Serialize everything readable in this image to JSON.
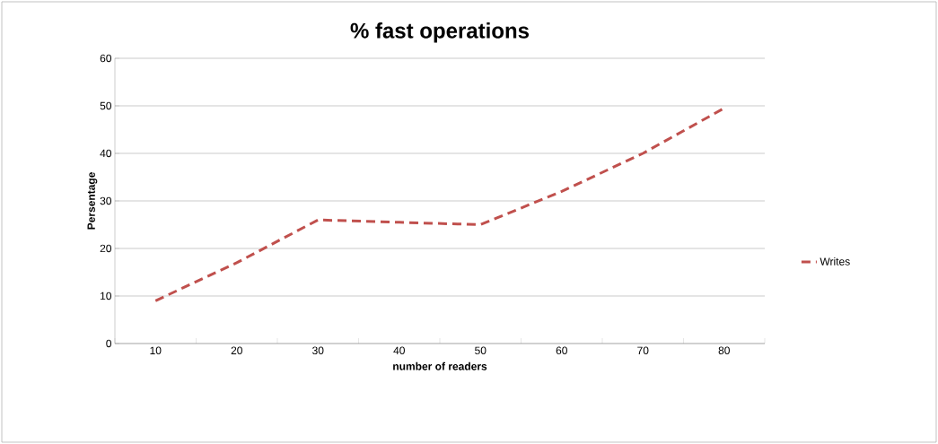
{
  "chart_data": {
    "type": "line",
    "title": "% fast operations",
    "xlabel": "number of readers",
    "ylabel": "Persentage",
    "categories": [
      "10",
      "20",
      "30",
      "40",
      "50",
      "60",
      "70",
      "80"
    ],
    "series": [
      {
        "name": "Writes",
        "color": "#c0504d",
        "values": [
          9,
          17,
          26,
          25.5,
          25,
          32,
          40,
          49.5
        ]
      }
    ],
    "ylim": [
      0,
      60
    ],
    "yticks": [
      0,
      10,
      20,
      30,
      40,
      50,
      60
    ],
    "grid": "y",
    "legend": "right",
    "line_style": "dashed",
    "marker": "none"
  }
}
